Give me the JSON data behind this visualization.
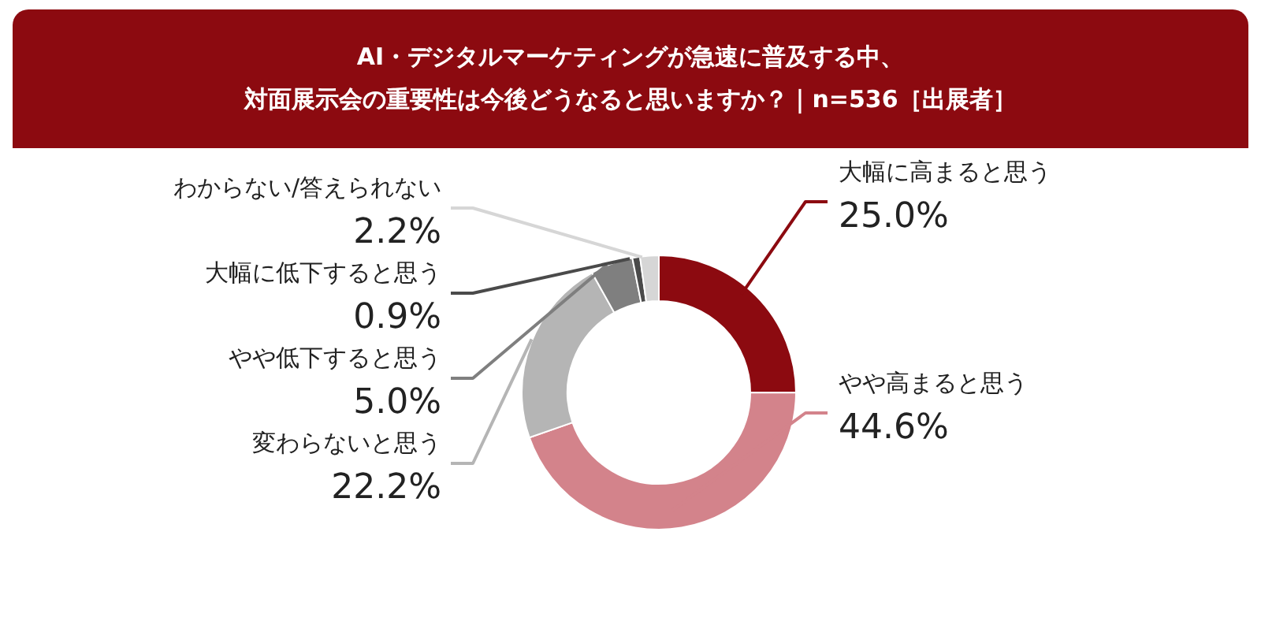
{
  "chart_data": {
    "type": "donut",
    "title": "AI・デジタルマーケティングが急速に普及する中、",
    "subtitle": "対面展示会の重要性は今後どうなると思いますか？｜n=536［出展者］",
    "categories": [
      "大幅に高まると思う",
      "やや高まると思う",
      "変わらないと思う",
      "やや低下すると思う",
      "大幅に低下すると思う",
      "わからない/答えられない"
    ],
    "values": [
      25.0,
      44.6,
      22.2,
      5.0,
      0.9,
      2.2
    ],
    "colors": [
      "#8c0a10",
      "#d3838b",
      "#b5b5b5",
      "#7f7f7f",
      "#4a4a4a",
      "#d6d6d6"
    ],
    "value_labels": [
      "25.0%",
      "44.6%",
      "22.2%",
      "5.0%",
      "0.9%",
      "2.2%"
    ]
  }
}
